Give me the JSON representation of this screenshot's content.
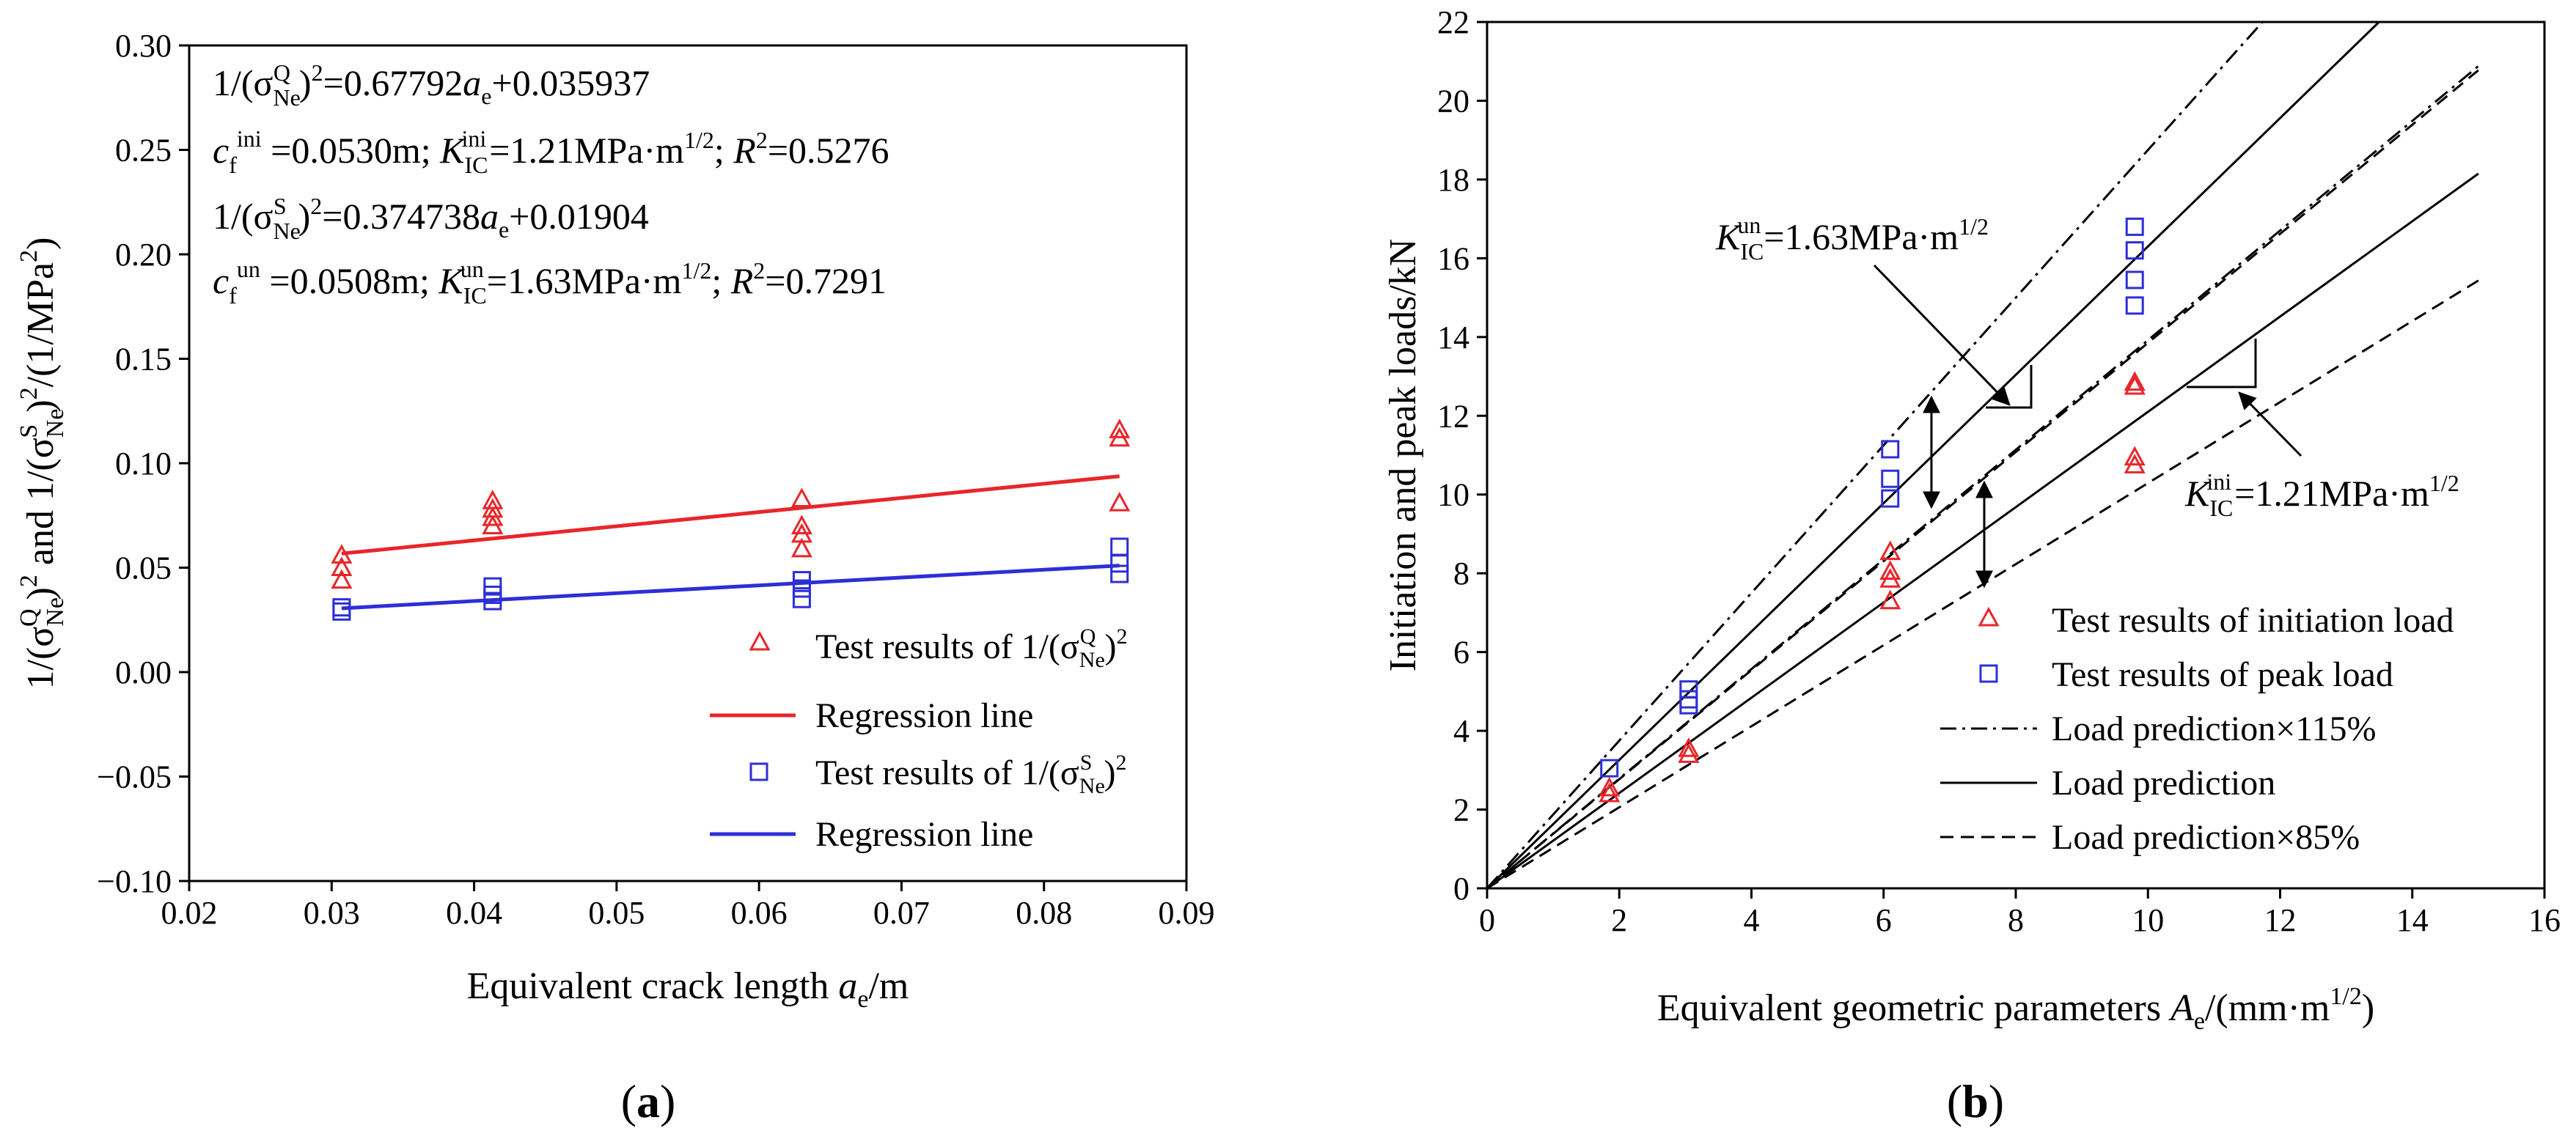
{
  "chart_data": [
    {
      "type": "scatter",
      "panel_label": "a",
      "xlabel": "Equivalent crack length a_e/m",
      "xlabel_parts": {
        "main": "Equivalent crack length ",
        "var": "a",
        "sub": "e",
        "unit": "/m"
      },
      "ylabel": "1/(σNe^Q)^2 and 1/(σNe^S)^2/(1/MPa^2)",
      "xlim": [
        0.02,
        0.09
      ],
      "ylim": [
        -0.1,
        0.3
      ],
      "xticks": [
        0.02,
        0.03,
        0.04,
        0.05,
        0.06,
        0.07,
        0.08,
        0.09
      ],
      "xtick_labels": [
        "0.02",
        "0.03",
        "0.04",
        "0.05",
        "0.06",
        "0.07",
        "0.08",
        "0.09"
      ],
      "yticks": [
        -0.1,
        -0.05,
        0.0,
        0.05,
        0.1,
        0.15,
        0.2,
        0.25,
        0.3
      ],
      "ytick_labels": [
        "−0.10",
        "−0.05",
        "0.00",
        "0.05",
        "0.10",
        "0.15",
        "0.20",
        "0.25",
        "0.30"
      ],
      "grid": false,
      "legend_position": "lower-right",
      "annotations": {
        "eq_q": {
          "coef": "0.67792",
          "intercept": "0.035937"
        },
        "params_q": {
          "cf": "0.0530m",
          "kic": "1.21MPa·m",
          "r2": "0.5276"
        },
        "eq_s": {
          "coef": "0.374738",
          "intercept": "0.01904"
        },
        "params_s": {
          "cf": "0.0508m",
          "kic": "1.63MPa·m",
          "r2": "0.7291"
        }
      },
      "series": [
        {
          "name": "Test results of 1/(σNe^Q)^2",
          "marker": "triangle",
          "color": "#e8262a",
          "points": [
            [
              0.0307,
              0.056
            ],
            [
              0.0307,
              0.05
            ],
            [
              0.0307,
              0.044
            ],
            [
              0.0413,
              0.082
            ],
            [
              0.0413,
              0.078
            ],
            [
              0.0413,
              0.074
            ],
            [
              0.0413,
              0.07
            ],
            [
              0.063,
              0.083
            ],
            [
              0.063,
              0.07
            ],
            [
              0.063,
              0.066
            ],
            [
              0.063,
              0.059
            ],
            [
              0.0853,
              0.116
            ],
            [
              0.0853,
              0.112
            ],
            [
              0.0853,
              0.081
            ]
          ]
        },
        {
          "name": "Regression line",
          "kind": "line",
          "color": "#e8262a",
          "slope": 0.67792,
          "intercept": 0.035937,
          "x_range": [
            0.0307,
            0.0853
          ]
        },
        {
          "name": "Test results of 1/(σNe^S)^2",
          "marker": "square",
          "color": "#2d2fd6",
          "points": [
            [
              0.0307,
              0.031
            ],
            [
              0.0307,
              0.029
            ],
            [
              0.0413,
              0.041
            ],
            [
              0.0413,
              0.037
            ],
            [
              0.0413,
              0.034
            ],
            [
              0.063,
              0.044
            ],
            [
              0.063,
              0.04
            ],
            [
              0.063,
              0.035
            ],
            [
              0.0853,
              0.06
            ],
            [
              0.0853,
              0.052
            ],
            [
              0.0853,
              0.047
            ]
          ]
        },
        {
          "name": "Regression line",
          "kind": "line",
          "color": "#2d2fd6",
          "slope": 0.374738,
          "intercept": 0.01904,
          "x_range": [
            0.0307,
            0.0853
          ]
        }
      ],
      "legend": {
        "q_text": "Test results of 1/(σ",
        "s_text": "Test results of 1/(σ",
        "reg_q": "Regression line",
        "reg_s": "Regression line"
      }
    },
    {
      "type": "scatter",
      "panel_label": "b",
      "xlabel": "Equivalent geometric parameters A_e/(mm·m^1/2)",
      "xlabel_parts": {
        "main": "Equivalent geometric parameters ",
        "var": "A",
        "sub": "e",
        "unit": "/(mm·m",
        "sup": "1/2",
        "close": ")"
      },
      "ylabel": "Initiation and peak loads/kN",
      "xlim": [
        0,
        16
      ],
      "ylim": [
        0,
        22
      ],
      "xticks": [
        0,
        2,
        4,
        6,
        8,
        10,
        12,
        14,
        16
      ],
      "xtick_labels": [
        "0",
        "2",
        "4",
        "6",
        "8",
        "10",
        "12",
        "14",
        "16"
      ],
      "yticks": [
        0,
        2,
        4,
        6,
        8,
        10,
        12,
        14,
        16,
        18,
        20,
        22
      ],
      "ytick_labels": [
        "0",
        "2",
        "4",
        "6",
        "8",
        "10",
        "12",
        "14",
        "16",
        "18",
        "20",
        "22"
      ],
      "grid": false,
      "legend_position": "lower-right",
      "annotations": {
        "kun": "1.63MPa·m",
        "kini": "1.21MPa·m"
      },
      "series": [
        {
          "name": "Test results of initiation load",
          "marker": "triangle",
          "color": "#e8262a",
          "points": [
            [
              1.85,
              2.55
            ],
            [
              1.85,
              2.4
            ],
            [
              3.05,
              3.55
            ],
            [
              3.05,
              3.4
            ],
            [
              6.1,
              8.55
            ],
            [
              6.1,
              8.05
            ],
            [
              6.1,
              7.85
            ],
            [
              6.1,
              7.3
            ],
            [
              9.8,
              12.85
            ],
            [
              9.8,
              12.75
            ],
            [
              9.8,
              10.95
            ],
            [
              9.8,
              10.75
            ]
          ]
        },
        {
          "name": "Test results of peak load",
          "marker": "square",
          "color": "#2d2fd6",
          "points": [
            [
              1.85,
              3.05
            ],
            [
              3.05,
              5.05
            ],
            [
              3.05,
              4.8
            ],
            [
              3.05,
              4.65
            ],
            [
              6.1,
              11.15
            ],
            [
              6.1,
              10.4
            ],
            [
              6.1,
              9.9
            ],
            [
              9.8,
              16.8
            ],
            [
              9.8,
              16.2
            ],
            [
              9.8,
              15.45
            ],
            [
              9.8,
              14.8
            ]
          ]
        },
        {
          "name": "Load prediction×115%",
          "kind": "line",
          "style": "dashdot",
          "slopes": [
            1.875,
            1.392
          ]
        },
        {
          "name": "Load prediction",
          "kind": "line",
          "style": "solid",
          "slopes": [
            1.63,
            1.21
          ]
        },
        {
          "name": "Load prediction×85%",
          "kind": "line",
          "style": "dashed",
          "slopes": [
            1.385,
            1.029
          ]
        }
      ],
      "legend": {
        "init": "Test results of initiation load",
        "peak": "Test results of peak load",
        "p115": "Load prediction×115%",
        "p100": "Load prediction",
        "p85": "Load prediction×85%"
      }
    }
  ]
}
